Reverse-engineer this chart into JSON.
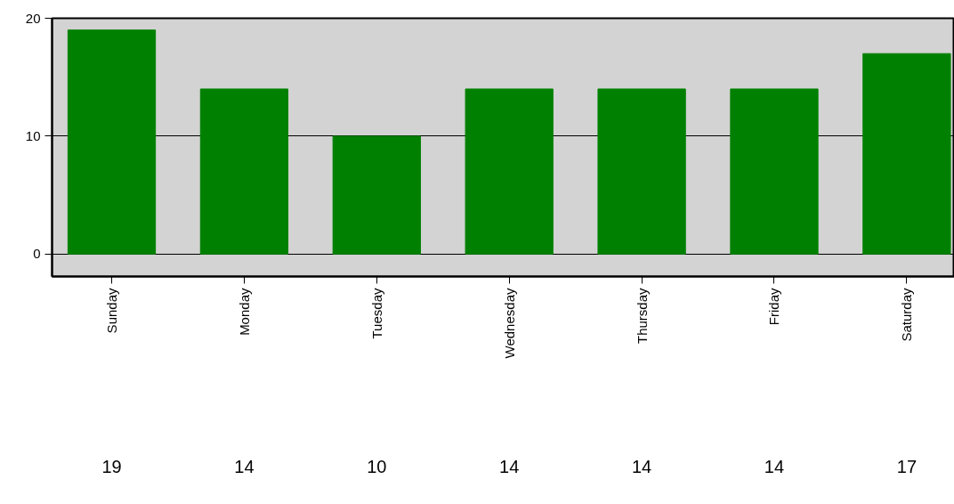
{
  "chart_data": {
    "type": "bar",
    "categories": [
      "Sunday",
      "Monday",
      "Tuesday",
      "Wednesday",
      "Thursday",
      "Friday",
      "Saturday"
    ],
    "values": [
      19,
      14,
      10,
      14,
      14,
      14,
      17
    ],
    "color": "#008000",
    "ylim": [
      -1.9,
      20
    ],
    "yticks": [
      0,
      10,
      20
    ],
    "grid": "y",
    "data_labels": true
  }
}
